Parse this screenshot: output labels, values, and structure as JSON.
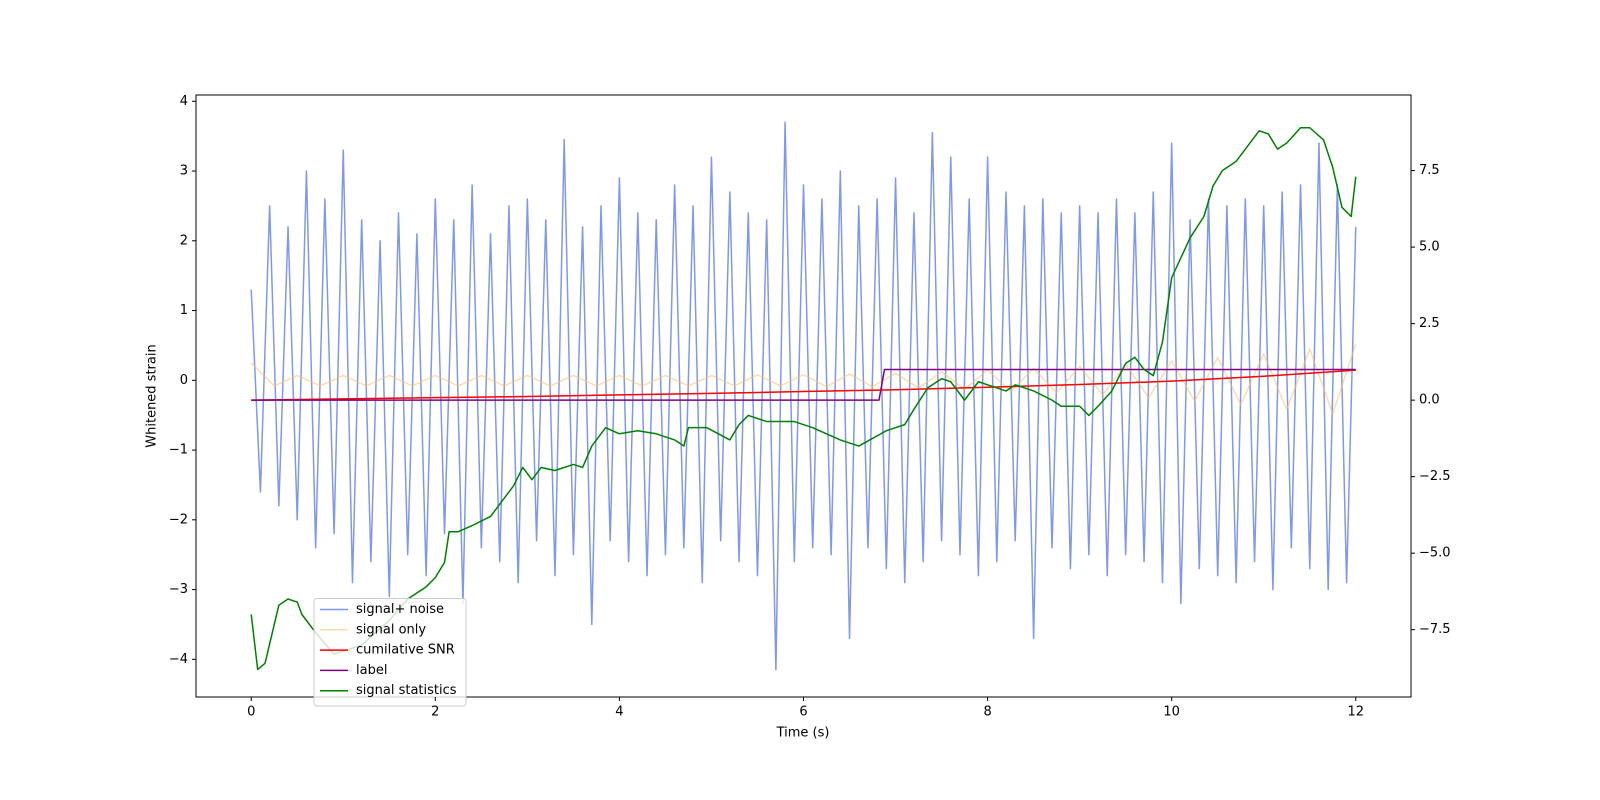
{
  "chart_data": {
    "type": "line",
    "xlabel": "Time (s)",
    "ylabel": "Whitened strain",
    "xlim": [
      -0.6,
      12.6
    ],
    "ylim": [
      -4.54,
      4.09
    ],
    "y2lim": [
      -9.7,
      9.97
    ],
    "xticks": [
      0,
      2,
      4,
      6,
      8,
      10,
      12
    ],
    "yticks": [
      {
        "value": -4,
        "label": "−4"
      },
      {
        "value": -3,
        "label": "−3"
      },
      {
        "value": -2,
        "label": "−2"
      },
      {
        "value": -1,
        "label": "−1"
      },
      0,
      1,
      2,
      3,
      4
    ],
    "y2ticks": [
      {
        "value": -7.5,
        "label": "−7.5"
      },
      {
        "value": -5,
        "label": "−5.0"
      },
      {
        "value": -2.5,
        "label": "−2.5"
      },
      {
        "value": 0,
        "label": "0.0"
      },
      2.5,
      {
        "value": 5,
        "label": "5.0"
      },
      7.5
    ],
    "legend": "lower left",
    "series": [
      {
        "name": "signal+ noise",
        "color": "#7893e8",
        "x": [
          0,
          0.1,
          0.2,
          0.3,
          0.4,
          0.5,
          0.6,
          0.7,
          0.8,
          0.9,
          1,
          1.1,
          1.2,
          1.3,
          1.4,
          1.5,
          1.6,
          1.7,
          1.8,
          1.9,
          2,
          2.1,
          2.2,
          2.3,
          2.4,
          2.5,
          2.6,
          2.7,
          2.8,
          2.9,
          3,
          3.1,
          3.2,
          3.3,
          3.4,
          3.5,
          3.6,
          3.7,
          3.8,
          3.9,
          4,
          4.1,
          4.2,
          4.3,
          4.4,
          4.5,
          4.6,
          4.7,
          4.8,
          4.9,
          5,
          5.1,
          5.2,
          5.3,
          5.4,
          5.5,
          5.6,
          5.7,
          5.8,
          5.9,
          6,
          6.1,
          6.2,
          6.3,
          6.4,
          6.5,
          6.6,
          6.7,
          6.8,
          6.9,
          7,
          7.1,
          7.2,
          7.3,
          7.4,
          7.5,
          7.6,
          7.7,
          7.8,
          7.9,
          8,
          8.1,
          8.2,
          8.3,
          8.4,
          8.5,
          8.6,
          8.7,
          8.8,
          8.9,
          9,
          9.1,
          9.2,
          9.3,
          9.4,
          9.5,
          9.6,
          9.7,
          9.8,
          9.9,
          10,
          10.1,
          10.2,
          10.3,
          10.4,
          10.5,
          10.6,
          10.7,
          10.8,
          10.9,
          11,
          11.1,
          11.2,
          11.3,
          11.4,
          11.5,
          11.6,
          11.7,
          11.8,
          11.9,
          12
        ],
        "values": [
          1.3,
          -1.6,
          2.5,
          -1.8,
          2.2,
          -2.0,
          3.0,
          -2.4,
          2.6,
          -2.2,
          3.3,
          -2.9,
          2.3,
          -2.6,
          2.0,
          -3.1,
          2.4,
          -2.5,
          2.1,
          -2.8,
          2.6,
          -2.2,
          2.3,
          -3.2,
          2.8,
          -2.4,
          2.1,
          -2.6,
          2.5,
          -2.9,
          2.6,
          -2.3,
          2.3,
          -2.8,
          3.45,
          -2.5,
          2.2,
          -3.5,
          2.5,
          -2.3,
          2.9,
          -2.6,
          2.4,
          -2.8,
          2.3,
          -2.5,
          2.8,
          -2.4,
          2.5,
          -2.9,
          3.2,
          -2.3,
          2.7,
          -2.6,
          2.4,
          -2.8,
          2.3,
          -4.15,
          3.7,
          -2.6,
          2.8,
          -2.4,
          2.6,
          -2.5,
          3.0,
          -3.7,
          2.5,
          -2.4,
          2.6,
          -2.7,
          2.9,
          -2.9,
          2.4,
          -2.6,
          3.55,
          -2.3,
          3.2,
          -2.5,
          2.6,
          -2.8,
          3.2,
          -2.6,
          2.7,
          -2.3,
          2.5,
          -3.7,
          2.6,
          -2.4,
          2.4,
          -2.7,
          2.5,
          -2.5,
          2.4,
          -2.8,
          2.6,
          -2.5,
          2.4,
          -2.6,
          2.7,
          -2.9,
          3.4,
          -3.2,
          2.3,
          -2.7,
          2.6,
          -2.8,
          2.5,
          -2.9,
          2.6,
          -2.6,
          2.5,
          -3.0,
          2.7,
          -2.4,
          2.8,
          -2.7,
          3.4,
          -3.0,
          2.8,
          -2.9,
          2.2
        ]
      },
      {
        "name": "signal only",
        "color": "#ffc060",
        "x": [
          0,
          0.25,
          0.5,
          0.75,
          1,
          1.25,
          1.5,
          1.75,
          2,
          2.25,
          2.5,
          2.75,
          3,
          3.25,
          3.5,
          3.75,
          4,
          4.25,
          4.5,
          4.75,
          5,
          5.25,
          5.5,
          5.75,
          6,
          6.25,
          6.5,
          6.75,
          7,
          7.25,
          7.5,
          7.75,
          8,
          8.25,
          8.5,
          8.75,
          9,
          9.25,
          9.5,
          9.75,
          10,
          10.25,
          10.5,
          10.75,
          11,
          11.25,
          11.5,
          11.75,
          12
        ],
        "values": [
          0.25,
          -0.08,
          0.07,
          -0.08,
          0.07,
          -0.08,
          0.07,
          -0.08,
          0.07,
          -0.08,
          0.07,
          -0.08,
          0.07,
          -0.08,
          0.07,
          -0.08,
          0.07,
          -0.08,
          0.07,
          -0.08,
          0.07,
          -0.08,
          0.08,
          -0.08,
          0.08,
          -0.09,
          0.09,
          -0.09,
          0.1,
          -0.11,
          0.12,
          -0.13,
          0.15,
          -0.16,
          0.17,
          -0.18,
          0.2,
          -0.21,
          0.23,
          -0.25,
          0.28,
          -0.3,
          0.33,
          -0.35,
          0.38,
          -0.42,
          0.45,
          -0.48,
          0.52
        ]
      },
      {
        "name": "cumilative SNR",
        "color": "#ff0000",
        "axis": "y2",
        "x": [
          0,
          1,
          2,
          3,
          4,
          5,
          6,
          7,
          8,
          9,
          10,
          11,
          12
        ],
        "values": [
          0,
          0.04,
          0.08,
          0.12,
          0.17,
          0.22,
          0.28,
          0.34,
          0.42,
          0.51,
          0.62,
          0.78,
          0.98
        ]
      },
      {
        "name": "label",
        "color": "#800080",
        "axis": "y2",
        "x": [
          0,
          6.82,
          6.88,
          12
        ],
        "values": [
          0,
          0,
          1,
          1
        ]
      },
      {
        "name": "signal statistics",
        "color": "#008000",
        "axis": "y2",
        "x": [
          0,
          0.07,
          0.15,
          0.3,
          0.4,
          0.5,
          0.55,
          0.7,
          0.9,
          1.2,
          1.5,
          1.7,
          1.9,
          2,
          2.1,
          2.15,
          2.25,
          2.4,
          2.6,
          2.85,
          2.95,
          3.05,
          3.15,
          3.3,
          3.5,
          3.6,
          3.7,
          3.85,
          4,
          4.2,
          4.4,
          4.6,
          4.7,
          4.75,
          4.95,
          5.2,
          5.3,
          5.4,
          5.6,
          5.9,
          6.1,
          6.4,
          6.6,
          6.9,
          7.1,
          7.2,
          7.35,
          7.5,
          7.6,
          7.75,
          7.9,
          8,
          8.2,
          8.3,
          8.5,
          8.7,
          8.8,
          9,
          9.1,
          9.2,
          9.35,
          9.5,
          9.6,
          9.7,
          9.8,
          9.9,
          10,
          10.2,
          10.35,
          10.45,
          10.55,
          10.7,
          10.85,
          10.95,
          11.05,
          11.15,
          11.25,
          11.4,
          11.5,
          11.65,
          11.75,
          11.85,
          11.95,
          12
        ],
        "values": [
          -7.0,
          -8.8,
          -8.6,
          -6.7,
          -6.5,
          -6.6,
          -7.0,
          -7.6,
          -8.3,
          -8.0,
          -7.2,
          -6.5,
          -6.1,
          -5.8,
          -5.3,
          -4.3,
          -4.3,
          -4.1,
          -3.8,
          -2.8,
          -2.2,
          -2.6,
          -2.2,
          -2.3,
          -2.1,
          -2.2,
          -1.5,
          -0.9,
          -1.1,
          -1.0,
          -1.1,
          -1.3,
          -1.5,
          -0.9,
          -0.9,
          -1.3,
          -0.8,
          -0.5,
          -0.7,
          -0.7,
          -0.9,
          -1.3,
          -1.5,
          -1.0,
          -0.8,
          -0.3,
          0.4,
          0.7,
          0.6,
          0.0,
          0.6,
          0.5,
          0.3,
          0.5,
          0.3,
          0.0,
          -0.2,
          -0.2,
          -0.5,
          -0.2,
          0.3,
          1.2,
          1.4,
          1.0,
          0.8,
          1.9,
          4.0,
          5.3,
          6.0,
          7.0,
          7.5,
          7.8,
          8.4,
          8.8,
          8.7,
          8.2,
          8.4,
          8.9,
          8.9,
          8.5,
          7.6,
          6.3,
          6.0,
          7.3
        ]
      }
    ]
  }
}
